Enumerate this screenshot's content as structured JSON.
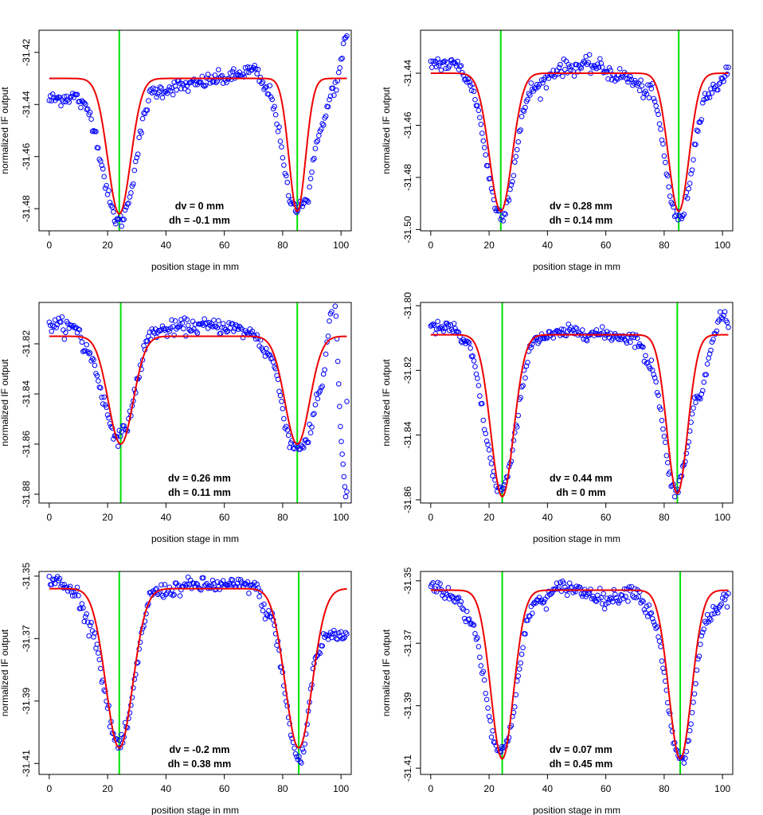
{
  "colors": {
    "points": "#0000ff",
    "fit": "#ee0000",
    "marker_lines": "#00e000",
    "axes": "#000000"
  },
  "chart_data": [
    {
      "type": "scatter",
      "title": "",
      "xlabel": "position stage in mm",
      "ylabel": "normalized IF output",
      "xlim": [
        -3.5,
        103.5
      ],
      "ylim": [
        -31.4885,
        -31.4115
      ],
      "xticks": [
        0,
        20,
        40,
        60,
        80,
        100
      ],
      "xtick_labels": [
        "0",
        "20",
        "40",
        "60",
        "80",
        "100"
      ],
      "yticks": [
        -31.42,
        -31.44,
        -31.46,
        -31.48
      ],
      "ytick_labels": [
        "-31.42",
        "-31.44",
        "-31.46",
        "-31.48"
      ],
      "vertical_lines": [
        24,
        85
      ],
      "fit": {
        "baseline": -31.43,
        "left": {
          "center": 24,
          "depth": 0.052,
          "width": 5.5
        },
        "right": {
          "center": 85,
          "depth": 0.051,
          "width": 4.0
        }
      },
      "annotations": [
        "dv = 0 mm",
        "dh = -0.1 mm"
      ],
      "points": {
        "x_range": [
          0,
          102
        ],
        "step": 0.4,
        "noise": 0.0014,
        "offset": -0.001,
        "anchors": [
          [
            0,
            -31.437
          ],
          [
            9,
            -31.436
          ],
          [
            12,
            -31.44
          ],
          [
            24,
            -31.484
          ],
          [
            36,
            -31.434
          ],
          [
            45,
            -31.432
          ],
          [
            60,
            -31.429
          ],
          [
            70,
            -31.426
          ],
          [
            75,
            -31.434
          ],
          [
            84,
            -31.478
          ],
          [
            88,
            -31.476
          ],
          [
            93,
            -31.448
          ],
          [
            98,
            -31.432
          ],
          [
            102,
            -31.414
          ]
        ]
      }
    },
    {
      "type": "scatter",
      "title": "",
      "xlabel": "position stage in mm",
      "ylabel": "normalized IF output",
      "xlim": [
        -3.5,
        103.5
      ],
      "ylim": [
        -31.5005,
        -31.4235
      ],
      "xticks": [
        0,
        20,
        40,
        60,
        80,
        100
      ],
      "xtick_labels": [
        "0",
        "20",
        "40",
        "60",
        "80",
        "100"
      ],
      "yticks": [
        -31.44,
        -31.46,
        -31.48,
        -31.5
      ],
      "ytick_labels": [
        "-31.44",
        "-31.46",
        "-31.48",
        "-31.50"
      ],
      "vertical_lines": [
        24,
        85
      ],
      "fit": {
        "baseline": -31.44,
        "left": {
          "center": 24,
          "depth": 0.053,
          "width": 5.5
        },
        "right": {
          "center": 85,
          "depth": 0.053,
          "width": 5.0
        }
      },
      "annotations": [
        "dv = 0.28 mm",
        "dh = 0.14 mm"
      ],
      "points": {
        "x_range": [
          0,
          102
        ],
        "step": 0.4,
        "noise": 0.0015,
        "offset": 0,
        "anchors": [
          [
            0,
            -31.436
          ],
          [
            10,
            -31.437
          ],
          [
            13,
            -31.444
          ],
          [
            24,
            -31.494
          ],
          [
            35,
            -31.446
          ],
          [
            45,
            -31.438
          ],
          [
            55,
            -31.437
          ],
          [
            65,
            -31.441
          ],
          [
            75,
            -31.447
          ],
          [
            85,
            -31.496
          ],
          [
            95,
            -31.448
          ],
          [
            102,
            -31.44
          ]
        ]
      }
    },
    {
      "type": "scatter",
      "title": "",
      "xlabel": "position stage in mm",
      "ylabel": "normalized IF output",
      "xlim": [
        -3.5,
        103.5
      ],
      "ylim": [
        -31.8835,
        -31.8035
      ],
      "xticks": [
        0,
        20,
        40,
        60,
        80,
        100
      ],
      "xtick_labels": [
        "0",
        "20",
        "40",
        "60",
        "80",
        "100"
      ],
      "yticks": [
        -31.82,
        -31.84,
        -31.86,
        -31.88
      ],
      "ytick_labels": [
        "-31.82",
        "-31.84",
        "-31.86",
        "-31.88"
      ],
      "vertical_lines": [
        24.5,
        85
      ],
      "fit": {
        "baseline": -31.817,
        "left": {
          "center": 24.5,
          "depth": 0.043,
          "width": 6.0
        },
        "right": {
          "center": 85,
          "depth": 0.043,
          "width": 6.0
        }
      },
      "annotations": [
        "dv = 0.26 mm",
        "dh = 0.11 mm"
      ],
      "points": {
        "x_range": [
          0,
          97
        ],
        "step": 0.4,
        "noise": 0.0015,
        "offset": 0,
        "anchors": [
          [
            0,
            -31.812
          ],
          [
            10,
            -31.814
          ],
          [
            12,
            -31.822
          ],
          [
            24,
            -31.857
          ],
          [
            36,
            -31.815
          ],
          [
            48,
            -31.813
          ],
          [
            60,
            -31.813
          ],
          [
            70,
            -31.816
          ],
          [
            75,
            -31.824
          ],
          [
            84,
            -31.861
          ],
          [
            88,
            -31.86
          ],
          [
            93,
            -31.838
          ],
          [
            97,
            -31.806
          ]
        ]
      },
      "extra_points": [
        [
          98,
          -31.805
        ],
        [
          98.3,
          -31.809
        ],
        [
          98.6,
          -31.818
        ],
        [
          98.9,
          -31.827
        ],
        [
          99.2,
          -31.836
        ],
        [
          99.5,
          -31.845
        ],
        [
          99.8,
          -31.853
        ],
        [
          100.1,
          -31.859
        ],
        [
          100.4,
          -31.864
        ],
        [
          100.7,
          -31.868
        ],
        [
          101,
          -31.873
        ],
        [
          101.3,
          -31.877
        ],
        [
          101.6,
          -31.881
        ],
        [
          102,
          -31.879
        ],
        [
          102,
          -31.843
        ]
      ]
    },
    {
      "type": "scatter",
      "title": "",
      "xlabel": "position stage in mm",
      "ylabel": "normalized IF output",
      "xlim": [
        -3.5,
        103.5
      ],
      "ylim": [
        -31.861,
        -31.799
      ],
      "xticks": [
        0,
        20,
        40,
        60,
        80,
        100
      ],
      "xtick_labels": [
        "0",
        "20",
        "40",
        "60",
        "80",
        "100"
      ],
      "yticks": [
        -31.8,
        -31.82,
        -31.84,
        -31.86
      ],
      "ytick_labels": [
        "-31.80",
        "-31.82",
        "-31.84",
        "-31.86"
      ],
      "vertical_lines": [
        24.5,
        84.5
      ],
      "fit": {
        "baseline": -31.809,
        "left": {
          "center": 24.5,
          "depth": 0.05,
          "width": 5.5
        },
        "right": {
          "center": 84.5,
          "depth": 0.049,
          "width": 5.0
        }
      },
      "annotations": [
        "dv = 0.44 mm",
        "dh = 0 mm"
      ],
      "points": {
        "x_range": [
          0,
          102
        ],
        "step": 0.4,
        "noise": 0.001,
        "offset": 0,
        "anchors": [
          [
            0,
            -31.807
          ],
          [
            8,
            -31.807
          ],
          [
            12,
            -31.812
          ],
          [
            24,
            -31.857
          ],
          [
            36,
            -31.81
          ],
          [
            50,
            -31.808
          ],
          [
            60,
            -31.809
          ],
          [
            70,
            -31.81
          ],
          [
            75,
            -31.818
          ],
          [
            84,
            -31.857
          ],
          [
            92,
            -31.828
          ],
          [
            97,
            -31.81
          ],
          [
            100,
            -31.802
          ],
          [
            102,
            -31.806
          ]
        ]
      }
    },
    {
      "type": "scatter",
      "title": "",
      "xlabel": "position stage in mm",
      "ylabel": "normalized IF output",
      "xlim": [
        -3.5,
        103.5
      ],
      "ylim": [
        -31.4135,
        -31.3485
      ],
      "xticks": [
        0,
        20,
        40,
        60,
        80,
        100
      ],
      "xtick_labels": [
        "0",
        "20",
        "40",
        "60",
        "80",
        "100"
      ],
      "yticks": [
        -31.35,
        -31.37,
        -31.39,
        -31.41
      ],
      "ytick_labels": [
        "-31.35",
        "-31.37",
        "-31.39",
        "-31.41"
      ],
      "vertical_lines": [
        24,
        85.5
      ],
      "fit": {
        "baseline": -31.354,
        "left": {
          "center": 24,
          "depth": 0.051,
          "width": 6.5
        },
        "right": {
          "center": 85.5,
          "depth": 0.051,
          "width": 6.5
        }
      },
      "annotations": [
        "dv = -0.2 mm",
        "dh = 0.38 mm"
      ],
      "points": {
        "x_range": [
          0,
          102
        ],
        "step": 0.4,
        "noise": 0.0012,
        "offset": 0,
        "anchors": [
          [
            0,
            -31.351
          ],
          [
            9,
            -31.355
          ],
          [
            13,
            -31.364
          ],
          [
            24,
            -31.404
          ],
          [
            36,
            -31.355
          ],
          [
            50,
            -31.353
          ],
          [
            60,
            -31.353
          ],
          [
            70,
            -31.353
          ],
          [
            75,
            -31.362
          ],
          [
            86,
            -31.409
          ],
          [
            92,
            -31.375
          ],
          [
            95,
            -31.369
          ],
          [
            102,
            -31.369
          ]
        ]
      }
    },
    {
      "type": "scatter",
      "title": "",
      "xlabel": "position stage in mm",
      "ylabel": "normalized IF output",
      "xlim": [
        -3.5,
        103.5
      ],
      "ylim": [
        -31.412,
        -31.347
      ],
      "xticks": [
        0,
        20,
        40,
        60,
        80,
        100
      ],
      "xtick_labels": [
        "0",
        "20",
        "40",
        "60",
        "80",
        "100"
      ],
      "yticks": [
        -31.35,
        -31.37,
        -31.39,
        -31.41
      ],
      "ytick_labels": [
        "-31.35",
        "-31.37",
        "-31.39",
        "-31.41"
      ],
      "vertical_lines": [
        24.5,
        85.5
      ],
      "fit": {
        "baseline": -31.353,
        "left": {
          "center": 24.5,
          "depth": 0.054,
          "width": 5.5
        },
        "right": {
          "center": 85.5,
          "depth": 0.054,
          "width": 5.5
        }
      },
      "annotations": [
        "dv = 0.07 mm",
        "dh = 0.45 mm"
      ],
      "points": {
        "x_range": [
          0,
          102
        ],
        "step": 0.4,
        "noise": 0.0012,
        "offset": 0,
        "anchors": [
          [
            0,
            -31.351
          ],
          [
            9,
            -31.356
          ],
          [
            13,
            -31.362
          ],
          [
            24,
            -31.405
          ],
          [
            36,
            -31.357
          ],
          [
            46,
            -31.352
          ],
          [
            55,
            -31.354
          ],
          [
            60,
            -31.356
          ],
          [
            70,
            -31.353
          ],
          [
            75,
            -31.36
          ],
          [
            86,
            -31.408
          ],
          [
            95,
            -31.362
          ],
          [
            102,
            -31.356
          ]
        ]
      }
    }
  ]
}
